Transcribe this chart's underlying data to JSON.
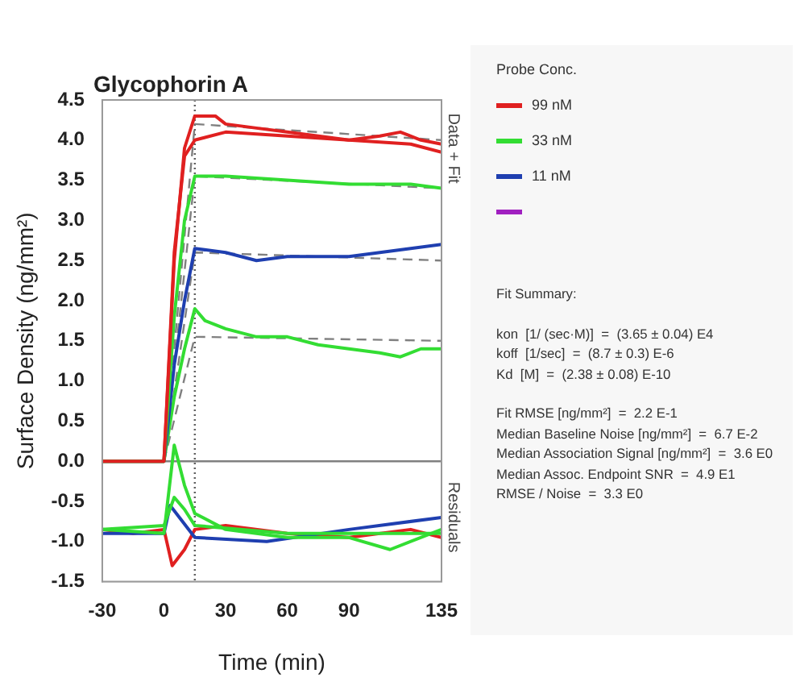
{
  "chart_data": {
    "type": "line",
    "title": "Glycophorin A",
    "xlabel": "Time (min)",
    "ylabel": "Surface Density (ng/mm²)",
    "legend_title": "Probe Conc.",
    "legend": "right",
    "grid": false,
    "marker": "none",
    "line_style": "solid",
    "xlim": [
      -30,
      135
    ],
    "xticks": [
      -30,
      0,
      30,
      60,
      90,
      135
    ],
    "ylim": [
      -1.5,
      4.5
    ],
    "yticks": [
      -1.5,
      {
        "value": -1,
        "label": "-1.0"
      },
      -0.5,
      {
        "value": 0,
        "label": "0.0"
      },
      0.5,
      {
        "value": 1,
        "label": "1.0"
      },
      1.5,
      {
        "value": 2,
        "label": "2.0"
      },
      2.5,
      {
        "value": 3,
        "label": "3.0"
      },
      3.5,
      {
        "value": 4,
        "label": "4.0"
      },
      4.5
    ],
    "ref_lines": [
      {
        "axis": "y",
        "value": 0,
        "color": "#808080",
        "line_style": "solid"
      },
      {
        "axis": "x",
        "value": 15,
        "color": "#606060",
        "line_style": "dotted"
      }
    ],
    "annotations": [
      "Data + Fit",
      "Residuals",
      "Fit Summary:",
      "kon  [1/ (sec·M)]  =  (3.65 ± 0.04) E4",
      "koff  [1/sec]  =  (8.7 ± 0.3) E-6",
      "Kd  [M]  =  (2.38 ± 0.08) E-10",
      "Fit RMSE [ng/mm²]  =  2.2 E-1",
      "Median Baseline Noise [ng/mm²]  =  6.7 E-2",
      "Median Association Signal [ng/mm²]  =  3.6 E0",
      "Median Assoc. Endpoint SNR  =  4.9 E1",
      "RMSE / Noise  =  3.3 E0"
    ],
    "series": [
      {
        "name": "99 nM",
        "color": "#e02020",
        "x": [
          -30,
          -15,
          0,
          5,
          10,
          15,
          25,
          30,
          45,
          60,
          75,
          90,
          105,
          115,
          125,
          135
        ],
        "values": [
          0,
          0,
          0,
          2.5,
          3.9,
          4.3,
          4.3,
          4.2,
          4.15,
          4.1,
          4.05,
          4.0,
          4.05,
          4.1,
          4.0,
          3.95
        ]
      },
      {
        "name": "33 nM",
        "color": "#33dd33",
        "x": [
          -30,
          -15,
          0,
          5,
          10,
          15,
          30,
          60,
          90,
          120,
          135
        ],
        "values": [
          0,
          0,
          0,
          1.8,
          3.0,
          3.55,
          3.55,
          3.5,
          3.45,
          3.45,
          3.4
        ]
      },
      {
        "name": "11 nM",
        "color": "#1f3fb0",
        "x": [
          -30,
          -15,
          0,
          5,
          10,
          15,
          30,
          45,
          60,
          90,
          105,
          120,
          135
        ],
        "values": [
          0,
          0,
          0,
          1.2,
          2.0,
          2.65,
          2.6,
          2.5,
          2.55,
          2.55,
          2.6,
          2.65,
          2.7
        ]
      },
      {
        "color": "#e02020",
        "x": [
          -30,
          0,
          5,
          10,
          15,
          30,
          60,
          90,
          120,
          135
        ],
        "values": [
          0,
          0,
          2.6,
          3.8,
          4.0,
          4.1,
          4.05,
          4.0,
          3.95,
          3.85
        ]
      },
      {
        "color": "#33dd33",
        "x": [
          -30,
          0,
          5,
          10,
          15,
          20,
          30,
          45,
          60,
          75,
          90,
          105,
          115,
          125,
          135
        ],
        "values": [
          0,
          0,
          0.8,
          1.4,
          1.9,
          1.75,
          1.65,
          1.55,
          1.55,
          1.45,
          1.4,
          1.35,
          1.3,
          1.4,
          1.4
        ]
      },
      {
        "color": "#808080",
        "line_style": "dashed",
        "x": [
          0,
          15,
          135
        ],
        "values": [
          0,
          4.2,
          4.0
        ]
      },
      {
        "color": "#808080",
        "line_style": "dashed",
        "x": [
          0,
          15,
          135
        ],
        "values": [
          0,
          3.55,
          3.4
        ]
      },
      {
        "color": "#808080",
        "line_style": "dashed",
        "x": [
          0,
          15,
          135
        ],
        "values": [
          0,
          2.6,
          2.5
        ]
      },
      {
        "color": "#808080",
        "line_style": "dashed",
        "x": [
          0,
          15,
          135
        ],
        "values": [
          0,
          1.55,
          1.5
        ]
      },
      {
        "color": "#33dd33",
        "x": [
          -30,
          0,
          5,
          10,
          15,
          30,
          60,
          90,
          110,
          135
        ],
        "values": [
          -0.85,
          -0.9,
          0.2,
          -0.3,
          -0.65,
          -0.85,
          -0.95,
          -0.95,
          -1.1,
          -0.85
        ]
      },
      {
        "color": "#33dd33",
        "x": [
          -30,
          0,
          5,
          10,
          15,
          60,
          135
        ],
        "values": [
          -0.85,
          -0.8,
          -0.45,
          -0.6,
          -0.8,
          -0.9,
          -0.9
        ]
      },
      {
        "color": "#1f3fb0",
        "x": [
          -30,
          0,
          3,
          15,
          50,
          90,
          135
        ],
        "values": [
          -0.9,
          -0.9,
          -0.55,
          -0.95,
          -1.0,
          -0.85,
          -0.7
        ]
      },
      {
        "color": "#e02020",
        "x": [
          -30,
          -15,
          0,
          4,
          10,
          15,
          30,
          60,
          90,
          120,
          135
        ],
        "values": [
          -0.85,
          -0.9,
          -0.85,
          -1.3,
          -1.1,
          -0.85,
          -0.8,
          -0.9,
          -0.95,
          -0.85,
          -0.95
        ]
      }
    ]
  }
}
